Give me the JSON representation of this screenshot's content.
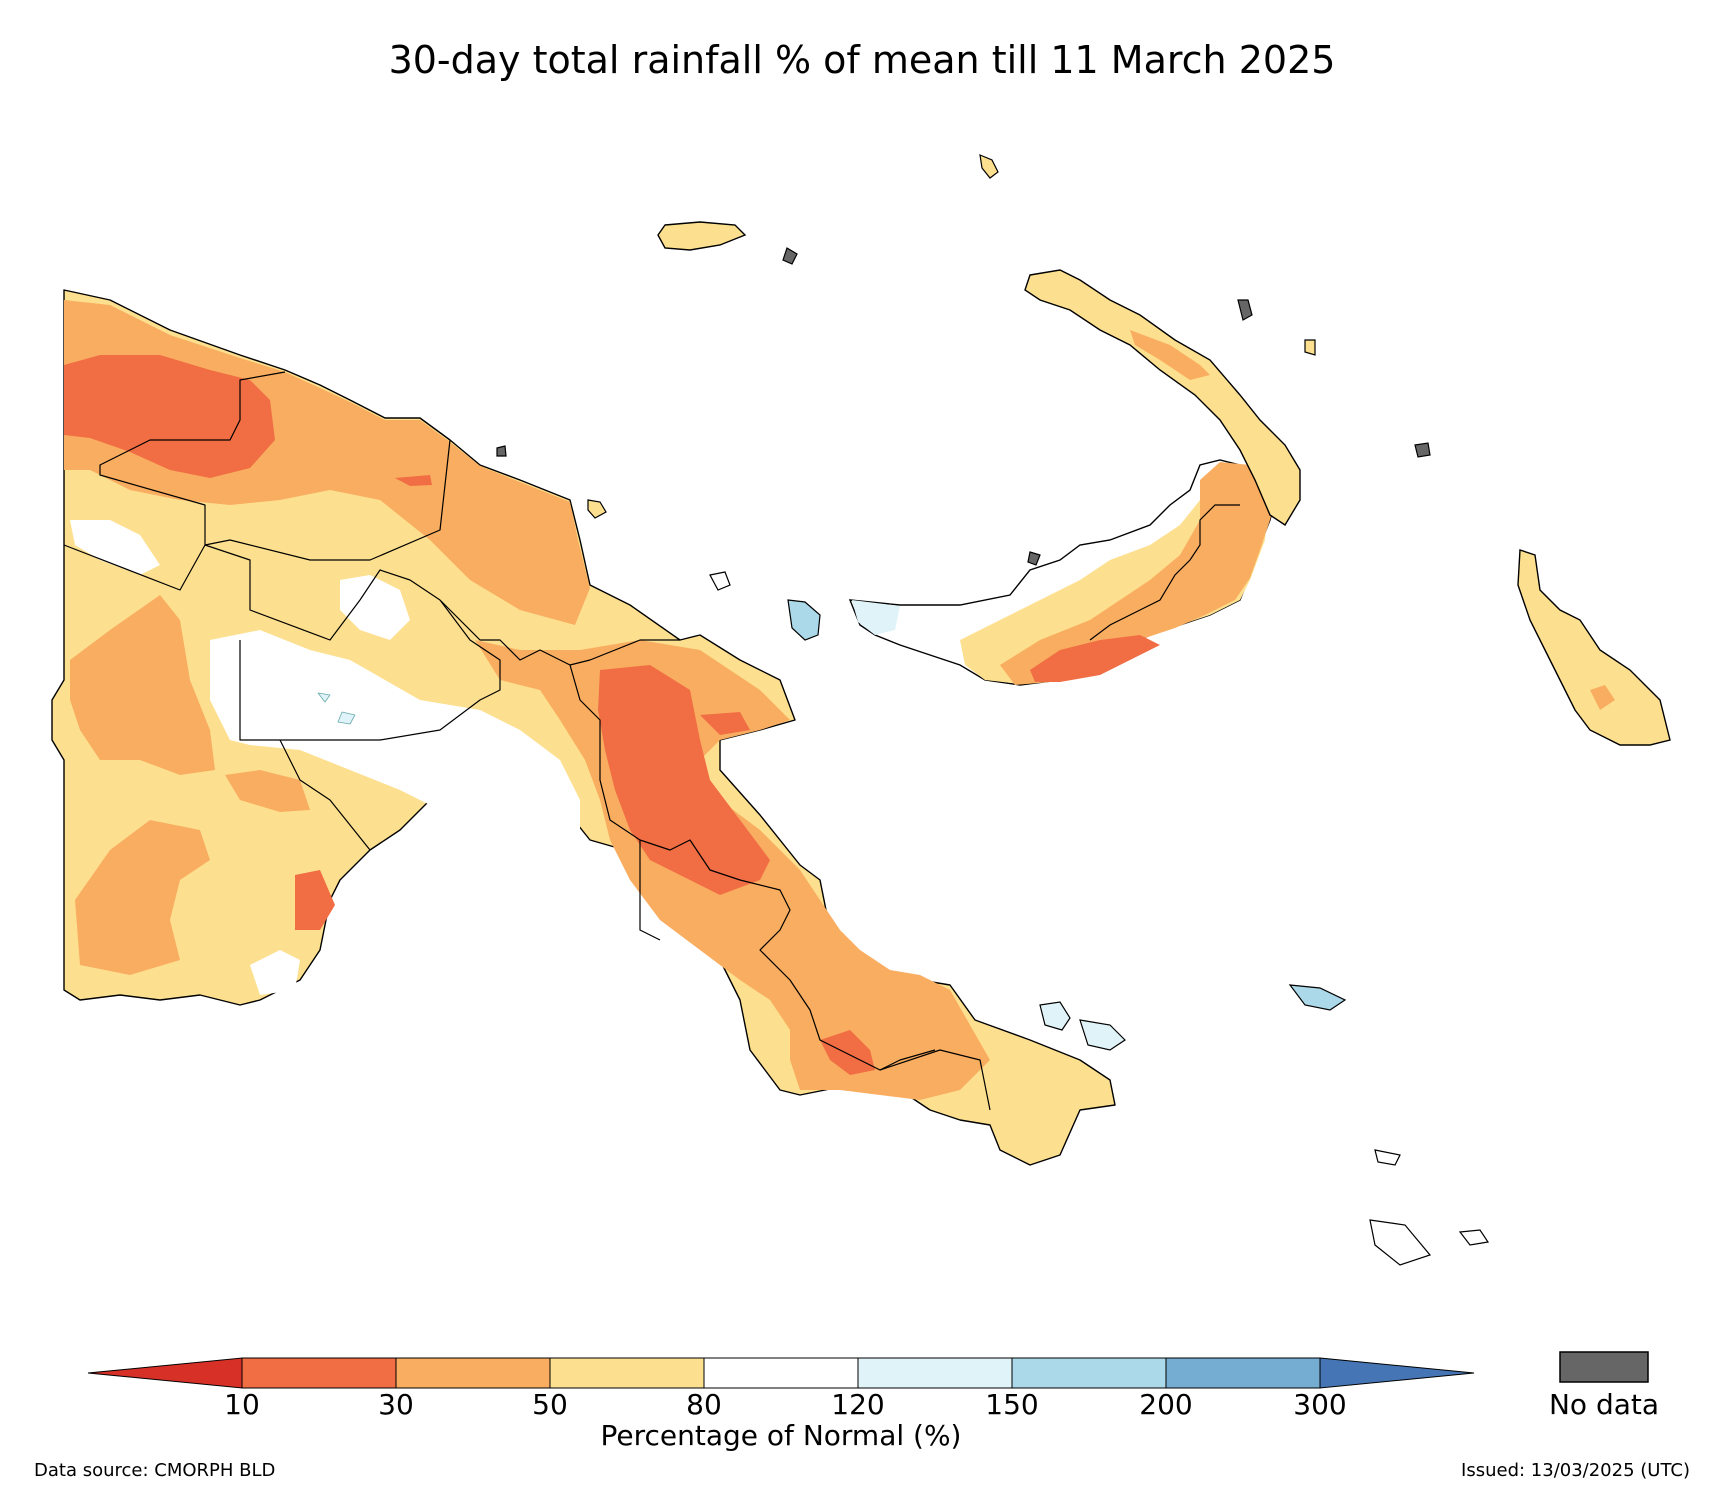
{
  "title": "30-day total rainfall % of mean till 11 March 2025",
  "colorbar": {
    "label": "Percentage of Normal (%)",
    "ticks": [
      "10",
      "30",
      "50",
      "80",
      "120",
      "150",
      "200",
      "300"
    ],
    "bins": [
      {
        "range": "<10",
        "color": "#d73027"
      },
      {
        "range": "10-30",
        "color": "#f16d43"
      },
      {
        "range": "30-50",
        "color": "#f9ad60"
      },
      {
        "range": "50-80",
        "color": "#fde08f"
      },
      {
        "range": "80-120",
        "color": "#ffffff"
      },
      {
        "range": "120-150",
        "color": "#e0f3f8"
      },
      {
        "range": "150-200",
        "color": "#abd9e9"
      },
      {
        "range": "200-300",
        "color": "#74add1"
      },
      {
        "range": ">300",
        "color": "#4575b4"
      }
    ],
    "no_data": {
      "label": "No data",
      "color": "#666666"
    }
  },
  "footer": {
    "data_source": "Data source: CMORPH BLD",
    "issued": "Issued: 13/03/2025 (UTC)"
  }
}
